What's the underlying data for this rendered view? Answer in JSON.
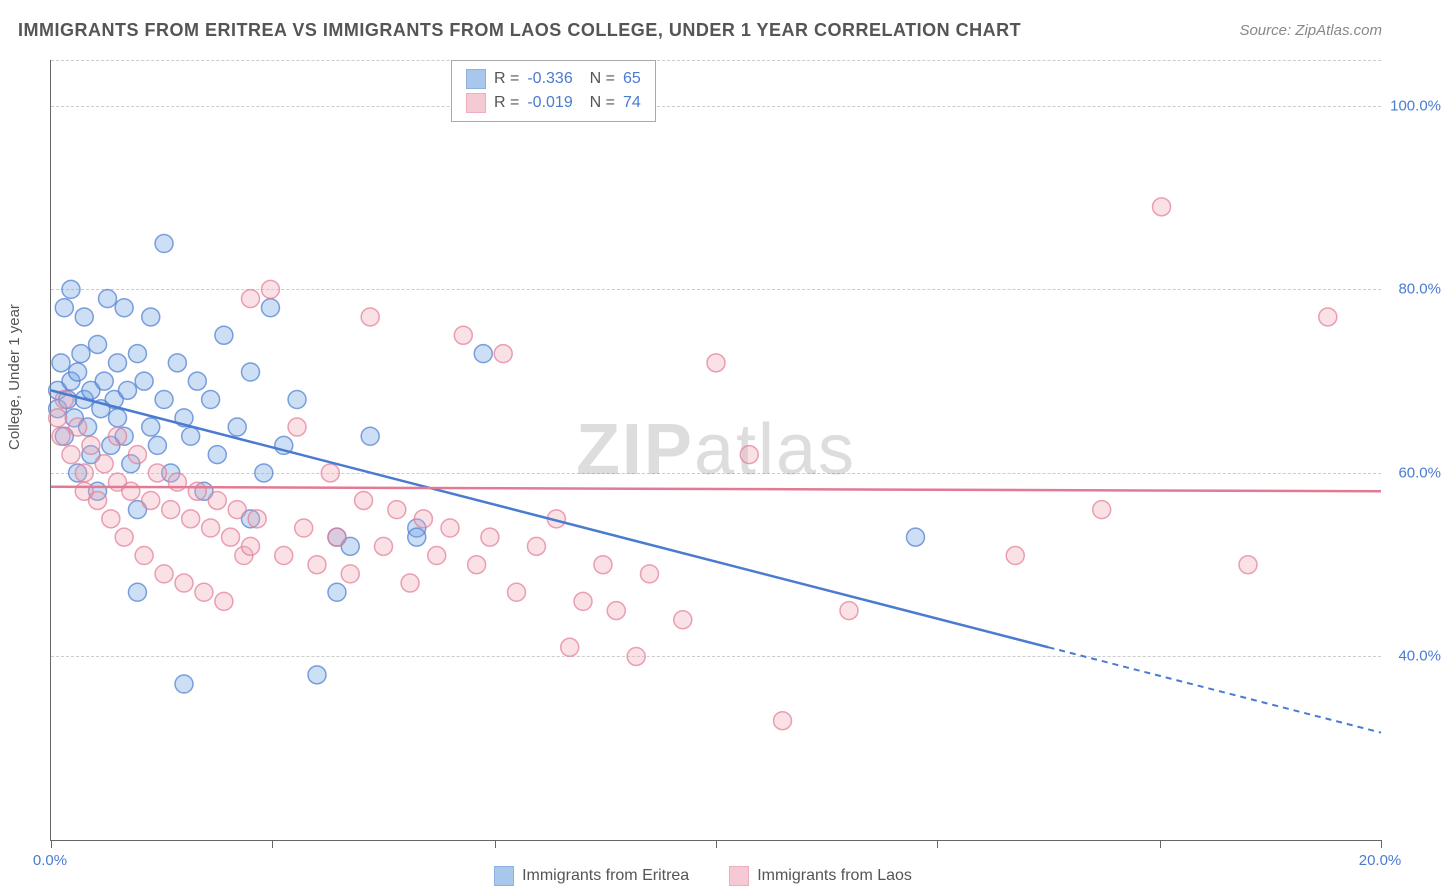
{
  "title": "IMMIGRANTS FROM ERITREA VS IMMIGRANTS FROM LAOS COLLEGE, UNDER 1 YEAR CORRELATION CHART",
  "source": "Source: ZipAtlas.com",
  "watermark_bold": "ZIP",
  "watermark_light": "atlas",
  "y_axis_label": "College, Under 1 year",
  "chart": {
    "type": "scatter",
    "background_color": "#ffffff",
    "grid_color": "#cccccc",
    "axis_color": "#666666",
    "text_color": "#555555",
    "value_color": "#4a7bd0",
    "xlim": [
      0,
      20
    ],
    "ylim": [
      20,
      105
    ],
    "y_ticks": [
      40,
      60,
      80,
      100
    ],
    "y_tick_labels": [
      "40.0%",
      "60.0%",
      "80.0%",
      "100.0%"
    ],
    "x_ticks": [
      0,
      3.33,
      6.67,
      10,
      13.33,
      16.67,
      20
    ],
    "x_tick_labels_shown": {
      "0": "0.0%",
      "20": "20.0%"
    },
    "marker_radius": 9,
    "marker_fill_opacity": 0.35,
    "marker_stroke_width": 1.5,
    "trendline_width": 2.5,
    "series": [
      {
        "name": "Immigrants from Eritrea",
        "color": "#6fa3e0",
        "stroke": "#4a7bd0",
        "R": "-0.336",
        "N": "65",
        "trend": {
          "x1": 0,
          "y1": 69,
          "x2": 15,
          "y2": 41,
          "extend_to_x": 20,
          "extend_y": 31.7,
          "dashed_after_x": 15
        },
        "points": [
          [
            0.1,
            67
          ],
          [
            0.1,
            69
          ],
          [
            0.15,
            72
          ],
          [
            0.2,
            64
          ],
          [
            0.2,
            78
          ],
          [
            0.25,
            68
          ],
          [
            0.3,
            70
          ],
          [
            0.3,
            80
          ],
          [
            0.35,
            66
          ],
          [
            0.4,
            71
          ],
          [
            0.4,
            60
          ],
          [
            0.45,
            73
          ],
          [
            0.5,
            68
          ],
          [
            0.5,
            77
          ],
          [
            0.55,
            65
          ],
          [
            0.6,
            69
          ],
          [
            0.6,
            62
          ],
          [
            0.7,
            74
          ],
          [
            0.7,
            58
          ],
          [
            0.75,
            67
          ],
          [
            0.8,
            70
          ],
          [
            0.85,
            79
          ],
          [
            0.9,
            63
          ],
          [
            0.95,
            68
          ],
          [
            1.0,
            72
          ],
          [
            1.0,
            66
          ],
          [
            1.1,
            64
          ],
          [
            1.1,
            78
          ],
          [
            1.15,
            69
          ],
          [
            1.2,
            61
          ],
          [
            1.3,
            73
          ],
          [
            1.3,
            56
          ],
          [
            1.4,
            70
          ],
          [
            1.5,
            65
          ],
          [
            1.5,
            77
          ],
          [
            1.6,
            63
          ],
          [
            1.7,
            68
          ],
          [
            1.7,
            85
          ],
          [
            1.8,
            60
          ],
          [
            1.9,
            72
          ],
          [
            2.0,
            66
          ],
          [
            2.0,
            37
          ],
          [
            2.1,
            64
          ],
          [
            2.2,
            70
          ],
          [
            2.3,
            58
          ],
          [
            2.4,
            68
          ],
          [
            2.5,
            62
          ],
          [
            2.6,
            75
          ],
          [
            2.8,
            65
          ],
          [
            3.0,
            71
          ],
          [
            3.0,
            55
          ],
          [
            3.2,
            60
          ],
          [
            3.3,
            78
          ],
          [
            3.5,
            63
          ],
          [
            3.7,
            68
          ],
          [
            4.0,
            38
          ],
          [
            4.3,
            47
          ],
          [
            4.3,
            53
          ],
          [
            4.5,
            52
          ],
          [
            4.8,
            64
          ],
          [
            5.5,
            54
          ],
          [
            5.5,
            53
          ],
          [
            6.5,
            73
          ],
          [
            1.3,
            47
          ],
          [
            13.0,
            53
          ]
        ]
      },
      {
        "name": "Immigrants from Laos",
        "color": "#f0a8b8",
        "stroke": "#e27a95",
        "R": "-0.019",
        "N": "74",
        "trend": {
          "x1": 0,
          "y1": 58.5,
          "x2": 20,
          "y2": 58,
          "extend_to_x": 20,
          "extend_y": 58,
          "dashed_after_x": 20
        },
        "points": [
          [
            0.1,
            66
          ],
          [
            0.15,
            64
          ],
          [
            0.2,
            68
          ],
          [
            0.3,
            62
          ],
          [
            0.4,
            65
          ],
          [
            0.5,
            60
          ],
          [
            0.5,
            58
          ],
          [
            0.6,
            63
          ],
          [
            0.7,
            57
          ],
          [
            0.8,
            61
          ],
          [
            0.9,
            55
          ],
          [
            1.0,
            59
          ],
          [
            1.0,
            64
          ],
          [
            1.1,
            53
          ],
          [
            1.2,
            58
          ],
          [
            1.3,
            62
          ],
          [
            1.4,
            51
          ],
          [
            1.5,
            57
          ],
          [
            1.6,
            60
          ],
          [
            1.7,
            49
          ],
          [
            1.8,
            56
          ],
          [
            1.9,
            59
          ],
          [
            2.0,
            48
          ],
          [
            2.1,
            55
          ],
          [
            2.2,
            58
          ],
          [
            2.3,
            47
          ],
          [
            2.4,
            54
          ],
          [
            2.5,
            57
          ],
          [
            2.6,
            46
          ],
          [
            2.7,
            53
          ],
          [
            2.8,
            56
          ],
          [
            2.9,
            51
          ],
          [
            3.0,
            52
          ],
          [
            3.0,
            79
          ],
          [
            3.1,
            55
          ],
          [
            3.3,
            80
          ],
          [
            3.5,
            51
          ],
          [
            3.7,
            65
          ],
          [
            3.8,
            54
          ],
          [
            4.0,
            50
          ],
          [
            4.2,
            60
          ],
          [
            4.3,
            53
          ],
          [
            4.5,
            49
          ],
          [
            4.7,
            57
          ],
          [
            4.8,
            77
          ],
          [
            5.0,
            52
          ],
          [
            5.2,
            56
          ],
          [
            5.4,
            48
          ],
          [
            5.6,
            55
          ],
          [
            5.8,
            51
          ],
          [
            6.0,
            54
          ],
          [
            6.2,
            75
          ],
          [
            6.4,
            50
          ],
          [
            6.6,
            53
          ],
          [
            6.8,
            73
          ],
          [
            7.0,
            47
          ],
          [
            7.3,
            52
          ],
          [
            7.6,
            55
          ],
          [
            7.8,
            41
          ],
          [
            8.0,
            46
          ],
          [
            8.3,
            50
          ],
          [
            8.5,
            45
          ],
          [
            8.8,
            40
          ],
          [
            9.0,
            49
          ],
          [
            9.5,
            44
          ],
          [
            10.0,
            72
          ],
          [
            10.5,
            62
          ],
          [
            11.0,
            33
          ],
          [
            12.0,
            45
          ],
          [
            14.5,
            51
          ],
          [
            15.8,
            56
          ],
          [
            16.7,
            89
          ],
          [
            18.0,
            50
          ],
          [
            19.2,
            77
          ]
        ]
      }
    ]
  }
}
